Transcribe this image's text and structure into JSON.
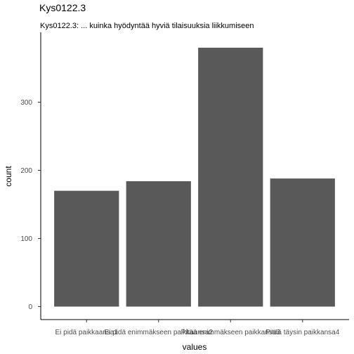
{
  "title": "Kys0122.3",
  "subtitle": "Kys0122.3: ... kuinka hyödyntää hyviä tilaisuuksia liikkumiseen",
  "chart_data": {
    "type": "bar",
    "categories": [
      "Ei pidä paikkaansa1",
      "Ei pidä enimmäkseen paikkaansa2",
      "Pitää enimmäkseen paikkansa3",
      "Pitää täysin paikkansa4"
    ],
    "values": [
      170,
      184,
      380,
      188
    ],
    "xlabel": "values",
    "ylabel": "count",
    "ylim": [
      0,
      400
    ],
    "yticks": [
      0,
      100,
      200,
      300
    ],
    "bar_color": "#595959",
    "grid": false,
    "legend": "none"
  }
}
